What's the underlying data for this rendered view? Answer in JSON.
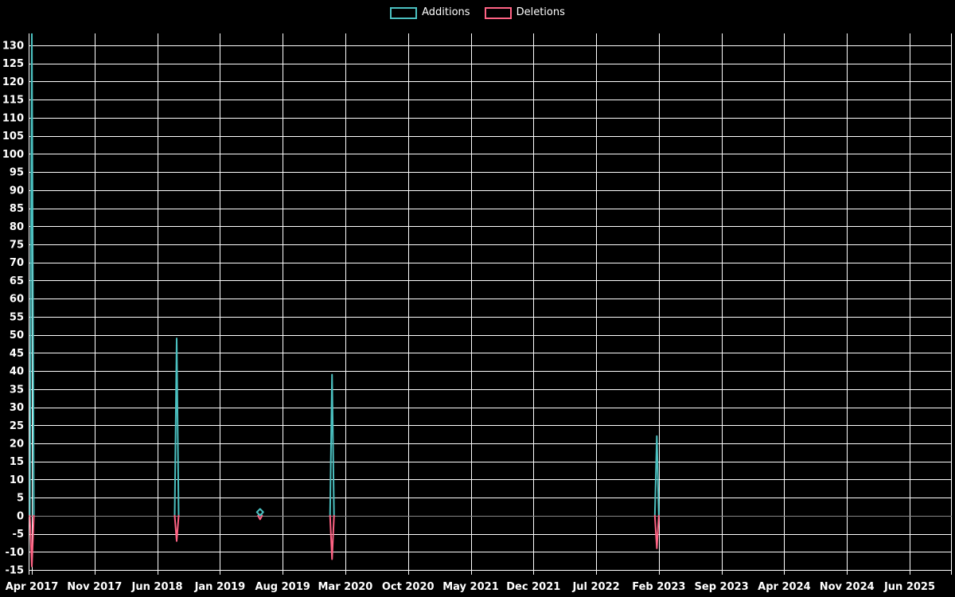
{
  "figure": {
    "background": "#000000",
    "text_color": "#ffffff"
  },
  "legend": {
    "items": [
      {
        "label": "Additions",
        "color": "#4bc0c0"
      },
      {
        "label": "Deletions",
        "color": "#ff6384"
      }
    ]
  },
  "chart_data": {
    "type": "line",
    "title": "",
    "legend_position": "top",
    "grid": true,
    "grid_color": "#ffffff",
    "zero_line_color": "#888888",
    "x_ticks": [
      "Apr 2017",
      "Nov 2017",
      "Jun 2018",
      "Jan 2019",
      "Aug 2019",
      "Mar 2020",
      "Oct 2020",
      "May 2021",
      "Dec 2021",
      "Jul 2022",
      "Feb 2023",
      "Sep 2023",
      "Apr 2024",
      "Nov 2024",
      "Jun 2025"
    ],
    "y_ticks": [
      130,
      125,
      120,
      115,
      110,
      105,
      100,
      95,
      90,
      85,
      80,
      75,
      70,
      65,
      60,
      55,
      50,
      45,
      40,
      35,
      30,
      25,
      20,
      15,
      10,
      5,
      0,
      -5,
      -10,
      -15
    ],
    "ylim": [
      -16.3,
      133.3
    ],
    "series": [
      {
        "name": "Additions",
        "color": "#4bc0c0"
      },
      {
        "name": "Deletions",
        "color": "#ff6384"
      }
    ],
    "events": [
      {
        "approx_date": "Apr 2017",
        "x_frac": 0.0,
        "additions": 134,
        "deletions": -14,
        "additions_clipped_at_top": true
      },
      {
        "approx_date": "Aug 2018",
        "x_frac": 0.165,
        "additions": 49,
        "deletions": -7
      },
      {
        "approx_date": "Jun 2019",
        "x_frac": 0.26,
        "additions": 1,
        "deletions": -1,
        "marker": "diamond"
      },
      {
        "approx_date": "Feb 2020",
        "x_frac": 0.342,
        "additions": 39,
        "deletions": -12
      },
      {
        "approx_date": "Feb 2023",
        "x_frac": 0.712,
        "additions": 22,
        "deletions": -9
      }
    ],
    "baseline_value": 0
  }
}
